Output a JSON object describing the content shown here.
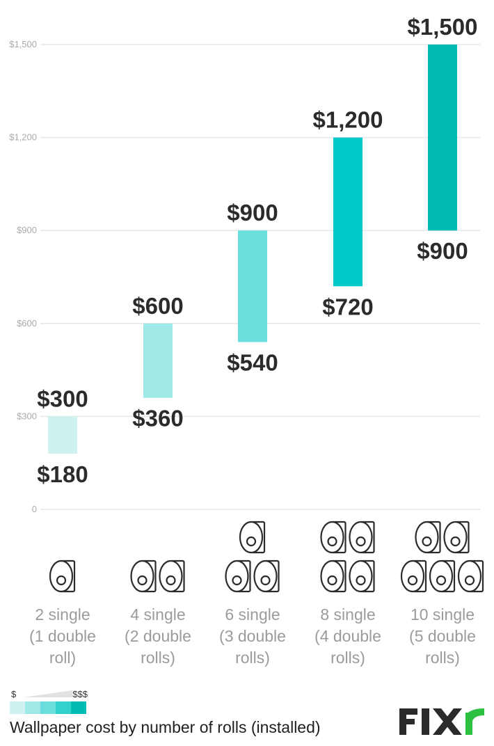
{
  "chart_data": {
    "type": "bar",
    "subtype": "floating-range",
    "categories": [
      "2 single\n(1 double\nroll)",
      "4 single\n(2 double\nrolls)",
      "6 single\n(3 double\nrolls)",
      "8 single\n(4 double\nrolls)",
      "10 single\n(5 double\nrolls)"
    ],
    "double_rolls": [
      1,
      2,
      3,
      4,
      5
    ],
    "low": [
      180,
      360,
      540,
      720,
      900
    ],
    "high": [
      300,
      600,
      900,
      1200,
      1500
    ],
    "low_labels": [
      "$180",
      "$360",
      "$540",
      "$720",
      "$900"
    ],
    "high_labels": [
      "$300",
      "$600",
      "$900",
      "$1,200",
      "$1,500"
    ],
    "bar_colors": [
      "#cff2f1",
      "#9ee9e7",
      "#6adedd",
      "#00c9c9",
      "#00bcb5"
    ],
    "ylim": [
      0,
      1500
    ],
    "yticks": [
      0,
      300,
      600,
      900,
      1200,
      1500
    ],
    "ytick_labels": [
      "0",
      "$300",
      "$600",
      "$900",
      "$1,200",
      "$1,500"
    ],
    "grid": true,
    "title": "",
    "xlabel": "",
    "ylabel": ""
  },
  "legend": {
    "low_label": "$",
    "high_label": "$$$",
    "colors": [
      "#cff2f1",
      "#9ee9e7",
      "#6adedd",
      "#33d1ce",
      "#00bcb5"
    ]
  },
  "caption": "Wallpaper cost by number of rolls (installed)",
  "logo": {
    "text": "FIXR",
    "colors": {
      "primary": "#2b2b2b",
      "accent": "#2bc03f"
    }
  }
}
